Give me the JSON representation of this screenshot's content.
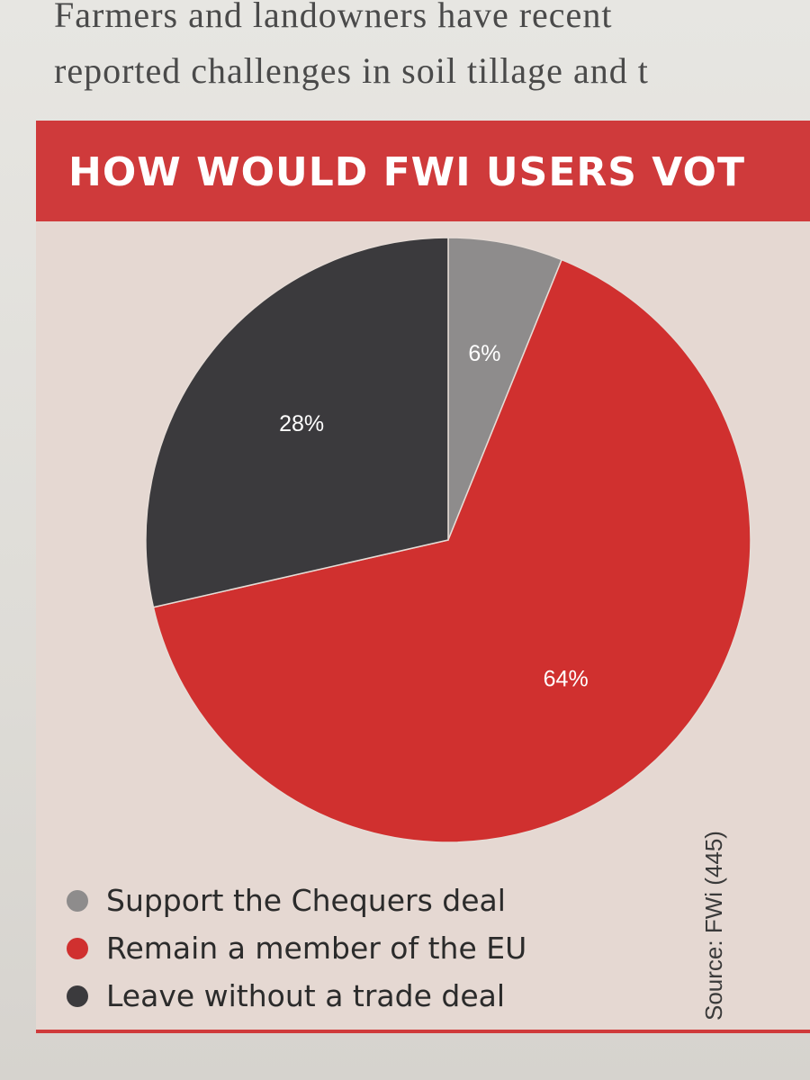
{
  "article": {
    "line1": "Farmers and landowners have recent",
    "line2": "reported challenges in soil tillage and t"
  },
  "chart_data": {
    "type": "pie",
    "title": "HOW WOULD FWI USERS VOT",
    "slices": [
      {
        "label": "Support the Chequers deal",
        "value": 6,
        "display": "6%",
        "color": "#8e8c8c"
      },
      {
        "label": "Remain a member of the EU",
        "value": 64,
        "display": "64%",
        "color": "#d0302f"
      },
      {
        "label": "Leave without a trade deal",
        "value": 28,
        "display": "28%",
        "color": "#3b3a3d"
      }
    ],
    "start": "12 o'clock, clockwise",
    "legend_position": "bottom-left",
    "source": "Source: FWi (445)"
  },
  "colors": {
    "accent": "#cf3a3b",
    "panel_bg": "#e5d8d2"
  }
}
